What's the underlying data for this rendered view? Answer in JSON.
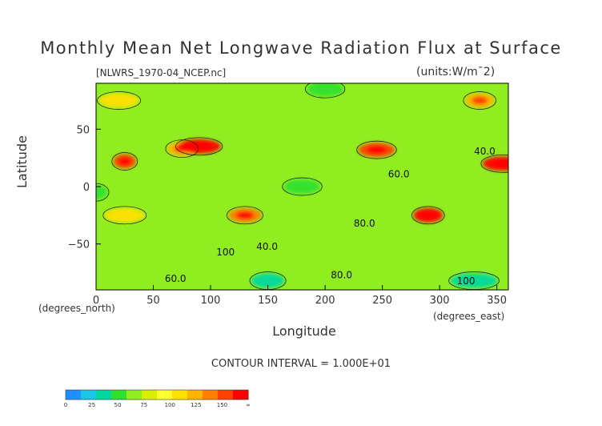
{
  "header": {
    "title": "Monthly Mean Net Longwave Radiation Flux at Surface",
    "filename": "[NLWRS_1970-04_NCEP.nc]",
    "units": "(units:W/m¯2)"
  },
  "footer": {
    "contour_interval": "CONTOUR INTERVAL = 1.000E+01"
  },
  "chart_data": {
    "type": "heatmap",
    "title": "Monthly Mean Net Longwave Radiation Flux at Surface",
    "xlabel": "Longitude",
    "ylabel": "Latitude",
    "x_unit_label": "(degrees_east)",
    "y_unit_label": "(degrees_north)",
    "xlim": [
      0,
      360
    ],
    "ylim": [
      -90,
      90
    ],
    "x_ticks": [
      0,
      50,
      100,
      150,
      200,
      250,
      300,
      350
    ],
    "y_ticks": [
      50,
      0,
      -50
    ],
    "contour_labels": [
      "60.0",
      "80.0",
      "100",
      "40.0"
    ],
    "colorbar": {
      "ticks": [
        "0",
        "25",
        "50",
        "75",
        "100",
        "125",
        "150",
        "∞"
      ],
      "colors": [
        "#1e90ff",
        "#18c8e6",
        "#00d8a0",
        "#30e030",
        "#90ee20",
        "#d8f000",
        "#ffff30",
        "#ffe000",
        "#ffb400",
        "#ff8000",
        "#ff4000",
        "#ff0000"
      ]
    },
    "regions": [
      {
        "lon": 0,
        "lat": -5,
        "value": 45
      },
      {
        "lon": 180,
        "lat": 0,
        "value": 40
      },
      {
        "lon": 25,
        "lat": 22,
        "value": 135
      },
      {
        "lon": 75,
        "lat": 33,
        "value": 110
      },
      {
        "lon": 90,
        "lat": 35,
        "value": 150
      },
      {
        "lon": 25,
        "lat": -25,
        "value": 95
      },
      {
        "lon": 130,
        "lat": -25,
        "value": 120
      },
      {
        "lon": 245,
        "lat": 32,
        "value": 130
      },
      {
        "lon": 290,
        "lat": -25,
        "value": 155
      },
      {
        "lon": 355,
        "lat": 20,
        "value": 140
      },
      {
        "lon": 335,
        "lat": 75,
        "value": 110
      },
      {
        "lon": 20,
        "lat": 75,
        "value": 95
      },
      {
        "lon": 200,
        "lat": 85,
        "value": 40
      },
      {
        "lon": 150,
        "lat": -82,
        "value": 30
      },
      {
        "lon": 330,
        "lat": -82,
        "value": 25
      }
    ]
  }
}
